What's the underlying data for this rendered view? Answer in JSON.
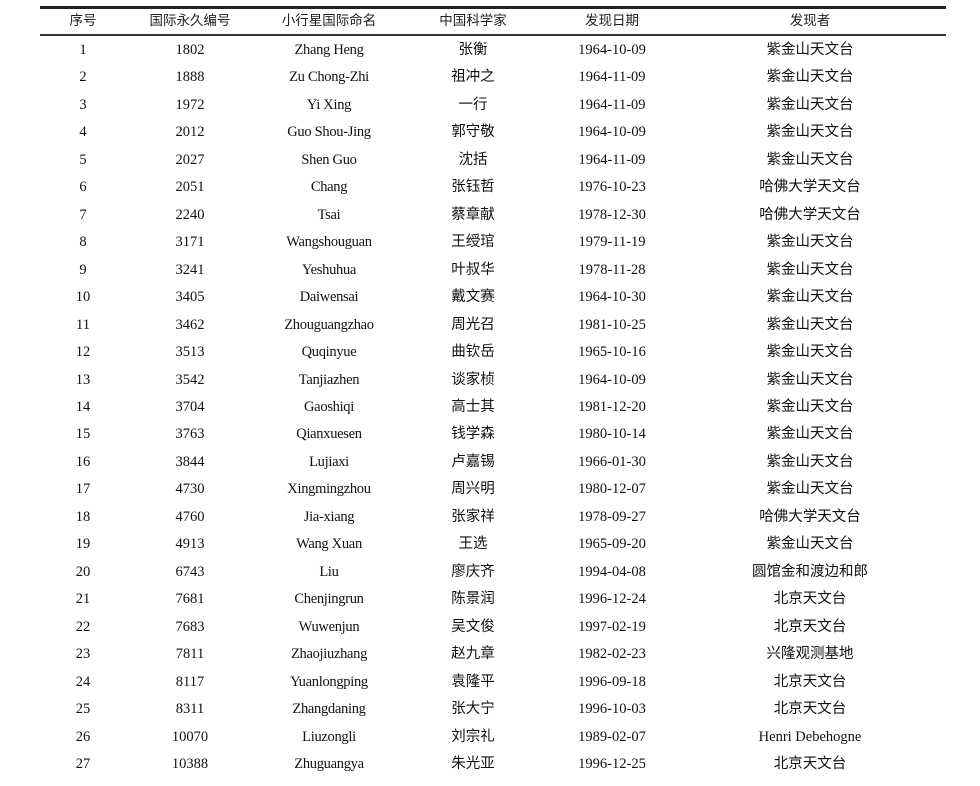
{
  "table": {
    "headers": [
      "序号",
      "国际永久编号",
      "小行星国际命名",
      "中国科学家",
      "发现日期",
      "发现者"
    ],
    "rows": [
      [
        "1",
        "1802",
        "Zhang Heng",
        "张衡",
        "1964-10-09",
        "紫金山天文台"
      ],
      [
        "2",
        "1888",
        "Zu Chong-Zhi",
        "祖冲之",
        "1964-11-09",
        "紫金山天文台"
      ],
      [
        "3",
        "1972",
        "Yi Xing",
        "一行",
        "1964-11-09",
        "紫金山天文台"
      ],
      [
        "4",
        "2012",
        "Guo Shou-Jing",
        "郭守敬",
        "1964-10-09",
        "紫金山天文台"
      ],
      [
        "5",
        "2027",
        "Shen Guo",
        "沈括",
        "1964-11-09",
        "紫金山天文台"
      ],
      [
        "6",
        "2051",
        "Chang",
        "张钰哲",
        "1976-10-23",
        "哈佛大学天文台"
      ],
      [
        "7",
        "2240",
        "Tsai",
        "蔡章献",
        "1978-12-30",
        "哈佛大学天文台"
      ],
      [
        "8",
        "3171",
        "Wangshouguan",
        "王绶琯",
        "1979-11-19",
        "紫金山天文台"
      ],
      [
        "9",
        "3241",
        "Yeshuhua",
        "叶叔华",
        "1978-11-28",
        "紫金山天文台"
      ],
      [
        "10",
        "3405",
        "Daiwensai",
        "戴文赛",
        "1964-10-30",
        "紫金山天文台"
      ],
      [
        "11",
        "3462",
        "Zhouguangzhao",
        "周光召",
        "1981-10-25",
        "紫金山天文台"
      ],
      [
        "12",
        "3513",
        "Quqinyue",
        "曲钦岳",
        "1965-10-16",
        "紫金山天文台"
      ],
      [
        "13",
        "3542",
        "Tanjiazhen",
        "谈家桢",
        "1964-10-09",
        "紫金山天文台"
      ],
      [
        "14",
        "3704",
        "Gaoshiqi",
        "高士其",
        "1981-12-20",
        "紫金山天文台"
      ],
      [
        "15",
        "3763",
        "Qianxuesen",
        "钱学森",
        "1980-10-14",
        "紫金山天文台"
      ],
      [
        "16",
        "3844",
        "Lujiaxi",
        "卢嘉锡",
        "1966-01-30",
        "紫金山天文台"
      ],
      [
        "17",
        "4730",
        "Xingmingzhou",
        "周兴明",
        "1980-12-07",
        "紫金山天文台"
      ],
      [
        "18",
        "4760",
        "Jia-xiang",
        "张家祥",
        "1978-09-27",
        "哈佛大学天文台"
      ],
      [
        "19",
        "4913",
        "Wang Xuan",
        "王选",
        "1965-09-20",
        "紫金山天文台"
      ],
      [
        "20",
        "6743",
        "Liu",
        "廖庆齐",
        "1994-04-08",
        "圆馆金和渡边和郎"
      ],
      [
        "21",
        "7681",
        "Chenjingrun",
        "陈景润",
        "1996-12-24",
        "北京天文台"
      ],
      [
        "22",
        "7683",
        "Wuwenjun",
        "吴文俊",
        "1997-02-19",
        "北京天文台"
      ],
      [
        "23",
        "7811",
        "Zhaojiuzhang",
        "赵九章",
        "1982-02-23",
        "兴隆观测基地"
      ],
      [
        "24",
        "8117",
        "Yuanlongping",
        "袁隆平",
        "1996-09-18",
        "北京天文台"
      ],
      [
        "25",
        "8311",
        "Zhangdaning",
        "张大宁",
        "1996-10-03",
        "北京天文台"
      ],
      [
        "26",
        "10070",
        "Liuzongli",
        "刘宗礼",
        "1989-02-07",
        "Henri Debehogne"
      ],
      [
        "27",
        "10388",
        "Zhuguangya",
        "朱光亚",
        "1996-12-25",
        "北京天文台"
      ]
    ]
  }
}
